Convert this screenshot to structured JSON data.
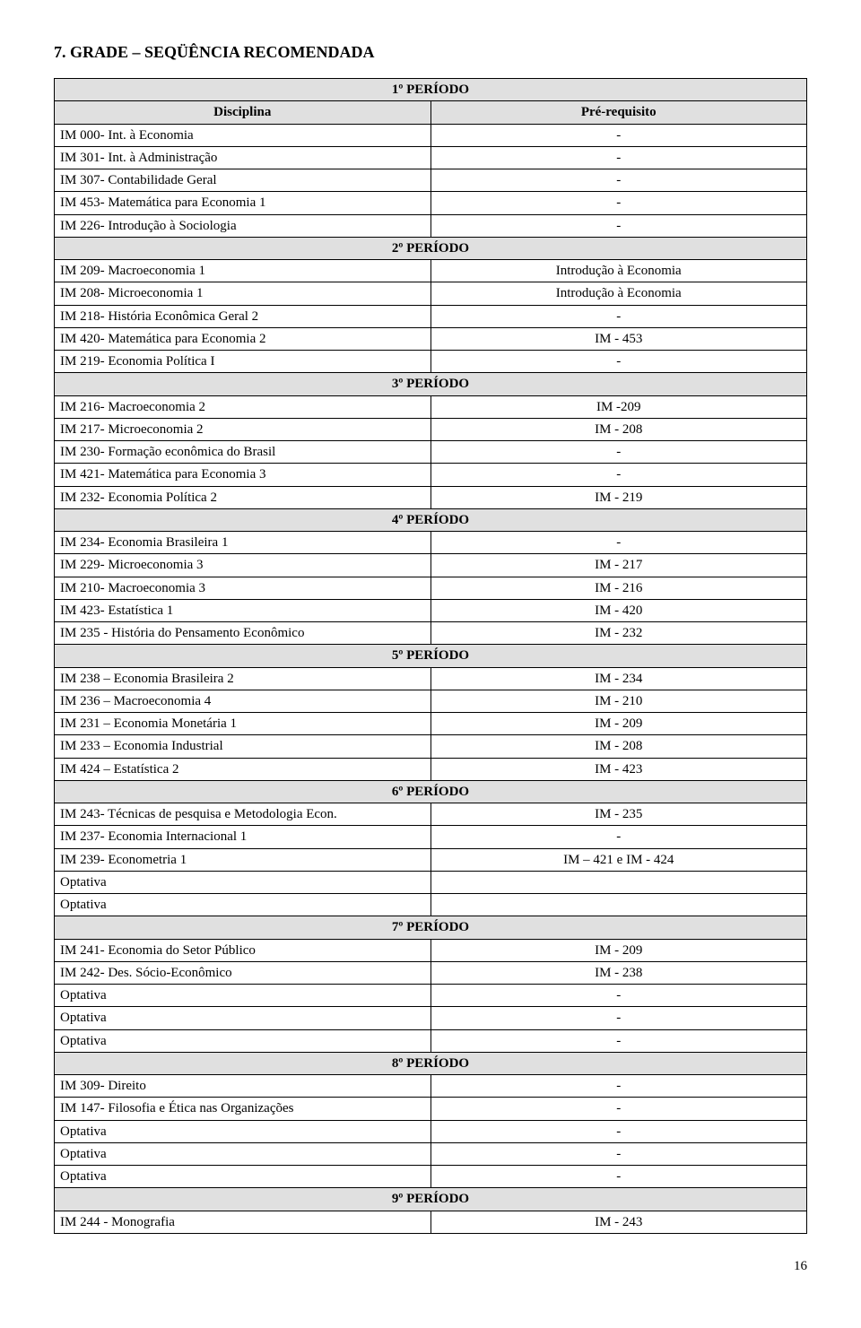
{
  "heading": "7. GRADE – SEQÜÊNCIA RECOMENDADA",
  "header_left": "Disciplina",
  "header_right": "Pré-requisito",
  "page_number": "16",
  "periods": [
    {
      "title": "1º PERÍODO",
      "rows": [
        {
          "left": "IM 000- Int. à Economia",
          "right": "-"
        },
        {
          "left": "IM 301- Int. à Administração",
          "right": "-"
        },
        {
          "left": "IM 307- Contabilidade Geral",
          "right": "-"
        },
        {
          "left": "IM 453- Matemática para Economia 1",
          "right": "-"
        },
        {
          "left": "IM 226- Introdução à Sociologia",
          "right": "-"
        }
      ]
    },
    {
      "title": "2º PERÍODO",
      "rows": [
        {
          "left": "IM 209- Macroeconomia 1",
          "right": "Introdução à Economia"
        },
        {
          "left": "IM 208- Microeconomia 1",
          "right": "Introdução à Economia"
        },
        {
          "left": "IM 218- História Econômica Geral 2",
          "right": "-"
        },
        {
          "left": "IM 420- Matemática para Economia 2",
          "right": "IM - 453"
        },
        {
          "left": "IM 219- Economia Política I",
          "right": "-"
        }
      ]
    },
    {
      "title": "3º PERÍODO",
      "rows": [
        {
          "left": "IM 216- Macroeconomia 2",
          "right": "IM -209"
        },
        {
          "left": "IM 217- Microeconomia 2",
          "right": "IM - 208"
        },
        {
          "left": "IM 230- Formação econômica do Brasil",
          "right": "-"
        },
        {
          "left": "IM 421- Matemática para Economia 3",
          "right": "-"
        },
        {
          "left": "IM 232- Economia Política 2",
          "right": "IM - 219"
        }
      ]
    },
    {
      "title": "4º PERÍODO",
      "rows": [
        {
          "left": "IM 234- Economia Brasileira 1",
          "right": "-"
        },
        {
          "left": "IM 229- Microeconomia 3",
          "right": "IM - 217"
        },
        {
          "left": "IM 210- Macroeconomia 3",
          "right": "IM - 216"
        },
        {
          "left": "IM 423- Estatística 1",
          "right": "IM - 420"
        },
        {
          "left": "IM 235 - História do Pensamento Econômico",
          "right": "IM - 232"
        }
      ]
    },
    {
      "title": "5º PERÍODO",
      "rows": [
        {
          "left": "IM 238 – Economia Brasileira 2",
          "right": "IM - 234"
        },
        {
          "left": "IM 236 – Macroeconomia 4",
          "right": "IM - 210"
        },
        {
          "left": "IM 231 – Economia Monetária 1",
          "right": "IM - 209"
        },
        {
          "left": "IM 233 – Economia Industrial",
          "right": "IM - 208"
        },
        {
          "left": "IM 424 – Estatística 2",
          "right": "IM - 423"
        }
      ]
    },
    {
      "title": "6º PERÍODO",
      "rows": [
        {
          "left": "IM 243- Técnicas de pesquisa e Metodologia Econ.",
          "right": "IM - 235"
        },
        {
          "left": "IM 237- Economia Internacional 1",
          "right": "-"
        },
        {
          "left": "IM 239- Econometria 1",
          "right": "IM – 421 e IM - 424"
        },
        {
          "left": "Optativa",
          "right": ""
        },
        {
          "left": "Optativa",
          "right": ""
        }
      ]
    },
    {
      "title": "7º PERÍODO",
      "rows": [
        {
          "left": "IM 241- Economia do Setor Público",
          "right": "IM - 209"
        },
        {
          "left": "IM 242- Des. Sócio-Econômico",
          "right": "IM - 238"
        },
        {
          "left": "Optativa",
          "right": "-"
        },
        {
          "left": "Optativa",
          "right": "-"
        },
        {
          "left": "Optativa",
          "right": "-"
        }
      ]
    },
    {
      "title": "8º PERÍODO",
      "rows": [
        {
          "left": "IM 309- Direito",
          "right": "-"
        },
        {
          "left": "IM 147- Filosofia e Ética nas Organizações",
          "right": "-"
        },
        {
          "left": "Optativa",
          "right": "-"
        },
        {
          "left": "Optativa",
          "right": "-"
        },
        {
          "left": "Optativa",
          "right": "-"
        }
      ]
    },
    {
      "title": "9º PERÍODO",
      "rows": [
        {
          "left": "IM 244 - Monografia",
          "right": "IM - 243"
        }
      ]
    }
  ]
}
